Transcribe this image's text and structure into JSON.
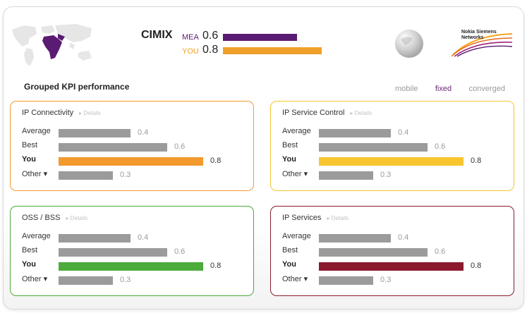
{
  "header": {
    "title": "CIMIX",
    "rows": [
      {
        "label": "MEA",
        "value": "0.6",
        "fraction": 0.6,
        "color": "#5a1b73"
      },
      {
        "label": "YOU",
        "value": "0.8",
        "fraction": 0.8,
        "color": "#f0a02a"
      }
    ],
    "brand": "Nokia Siemens Networks"
  },
  "section_title": "Grouped KPI performance",
  "tabs": [
    {
      "label": "mobile"
    },
    {
      "label": "fixed",
      "active": true
    },
    {
      "label": "converged"
    }
  ],
  "details_label": "▸ Details",
  "cards": [
    {
      "title": "IP Connectivity",
      "color": "#f29a2e",
      "rows": [
        {
          "label": "Average",
          "value": "0.4",
          "fraction": 0.4
        },
        {
          "label": "Best",
          "value": "0.6",
          "fraction": 0.6
        },
        {
          "label": "You",
          "value": "0.8",
          "fraction": 0.8,
          "you": true
        },
        {
          "label": "Other ▾",
          "value": "0.3",
          "fraction": 0.3
        }
      ]
    },
    {
      "title": "IP Service Control",
      "color": "#f7c52e",
      "rows": [
        {
          "label": "Average",
          "value": "0.4",
          "fraction": 0.4
        },
        {
          "label": "Best",
          "value": "0.6",
          "fraction": 0.6
        },
        {
          "label": "You",
          "value": "0.8",
          "fraction": 0.8,
          "you": true
        },
        {
          "label": "Other ▾",
          "value": "0.3",
          "fraction": 0.3
        }
      ]
    },
    {
      "title": "OSS / BSS",
      "color": "#4cab3a",
      "rows": [
        {
          "label": "Average",
          "value": "0.4",
          "fraction": 0.4
        },
        {
          "label": "Best",
          "value": "0.6",
          "fraction": 0.6
        },
        {
          "label": "You",
          "value": "0.8",
          "fraction": 0.8,
          "you": true
        },
        {
          "label": "Other ▾",
          "value": "0.3",
          "fraction": 0.3
        }
      ]
    },
    {
      "title": "IP Services",
      "color": "#8b1a2e",
      "rows": [
        {
          "label": "Average",
          "value": "0.4",
          "fraction": 0.4
        },
        {
          "label": "Best",
          "value": "0.6",
          "fraction": 0.6
        },
        {
          "label": "You",
          "value": "0.8",
          "fraction": 0.8,
          "you": true
        },
        {
          "label": "Other ▾",
          "value": "0.3",
          "fraction": 0.3
        }
      ]
    }
  ],
  "icons": {
    "map": "world-map-icon",
    "globe": "globe-icon",
    "logo": "nsn-logo-icon"
  }
}
